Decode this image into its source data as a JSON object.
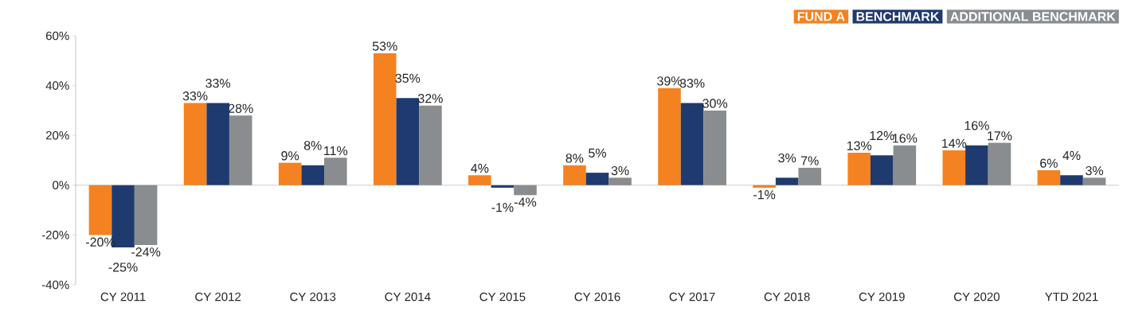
{
  "chart_data": {
    "type": "bar",
    "categories": [
      "CY 2011",
      "CY 2012",
      "CY 2013",
      "CY 2014",
      "CY 2015",
      "CY 2016",
      "CY 2017",
      "CY 2018",
      "CY 2019",
      "CY 2020",
      "YTD 2021"
    ],
    "series": [
      {
        "name": "FUND A",
        "color": "#f58220",
        "values": [
          -20,
          33,
          9,
          53,
          4,
          8,
          39,
          -1,
          13,
          14,
          6
        ],
        "value_labels": [
          "-20%",
          "33%",
          "9%",
          "53%",
          "4%",
          "8%",
          "39%",
          "-1%",
          "13%",
          "14%",
          "6%"
        ]
      },
      {
        "name": "BENCHMARK",
        "color": "#1f3a6e",
        "values": [
          -25,
          33,
          8,
          35,
          -1,
          5,
          33,
          3,
          12,
          16,
          4
        ],
        "value_labels": [
          "-25%",
          "33%",
          "8%",
          "35%",
          "-1%",
          "5%",
          "33%",
          "3%",
          "12%",
          "16%",
          "4%"
        ]
      },
      {
        "name": "ADDITIONAL BENCHMARK",
        "color": "#898d90",
        "values": [
          -24,
          28,
          11,
          32,
          -4,
          3,
          30,
          7,
          16,
          17,
          3
        ],
        "value_labels": [
          "-24%",
          "28%",
          "11%",
          "32%",
          "-4%",
          "3%",
          "30%",
          "7%",
          "16%",
          "17%",
          "3%"
        ]
      }
    ],
    "ylim": [
      -40,
      60
    ],
    "yticks": [
      {
        "value": -40,
        "label": "-40%"
      },
      {
        "value": -20,
        "label": "-20%"
      },
      {
        "value": 0,
        "label": "0%"
      },
      {
        "value": 20,
        "label": "20%"
      },
      {
        "value": 40,
        "label": "40%"
      },
      {
        "value": 60,
        "label": "60%"
      }
    ],
    "legend": "top right"
  }
}
